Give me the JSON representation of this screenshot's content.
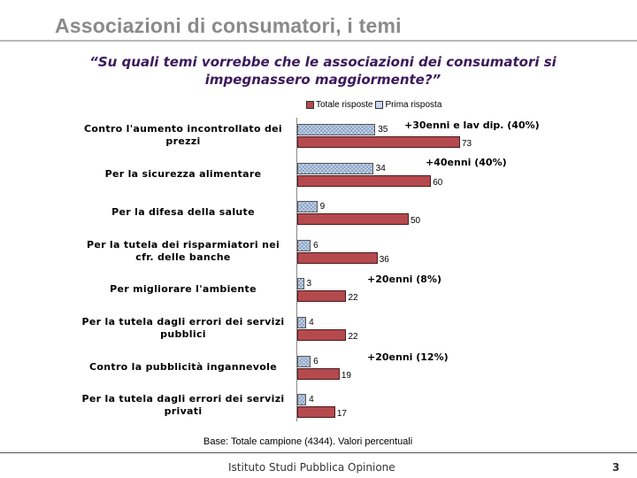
{
  "slide": {
    "title": "Associazioni di consumatori, i temi",
    "question": "“Su quali temi vorrebbe che le associazioni dei consumatori si impegnassero maggiormente?”",
    "footnote": "Base: Totale campione (4344). Valori percentuali",
    "footer": "Istituto Studi Pubblica Opinione",
    "page_number": "3"
  },
  "chart_data": {
    "type": "bar",
    "orientation": "horizontal",
    "xlim": [
      0,
      100
    ],
    "legend": [
      "Totale risposte",
      "Prima risposta"
    ],
    "categories": [
      "Contro l'aumento incontrollato dei prezzi",
      "Per la sicurezza alimentare",
      "Per la difesa della salute",
      "Per la tutela dei risparmiatori nei cfr. delle banche",
      "Per migliorare l'ambiente",
      "Per la tutela dagli errori dei servizi pubblici",
      "Contro la pubblicità ingannevole",
      "Per la tutela dagli errori dei servizi privati"
    ],
    "series": [
      {
        "name": "Prima risposta",
        "values": [
          35,
          34,
          9,
          6,
          3,
          4,
          6,
          4
        ],
        "color": "#c7d9f0"
      },
      {
        "name": "Totale risposte",
        "values": [
          73,
          60,
          50,
          36,
          22,
          22,
          19,
          17
        ],
        "color": "#b54a4e"
      }
    ],
    "annotations": [
      {
        "category_index": 0,
        "text": "+30enni e lav dip. (40%)"
      },
      {
        "category_index": 1,
        "text": "+40enni  (40%)"
      },
      {
        "category_index": 4,
        "text": "+20enni  (8%)"
      },
      {
        "category_index": 6,
        "text": "+20enni  (12%)"
      }
    ]
  }
}
